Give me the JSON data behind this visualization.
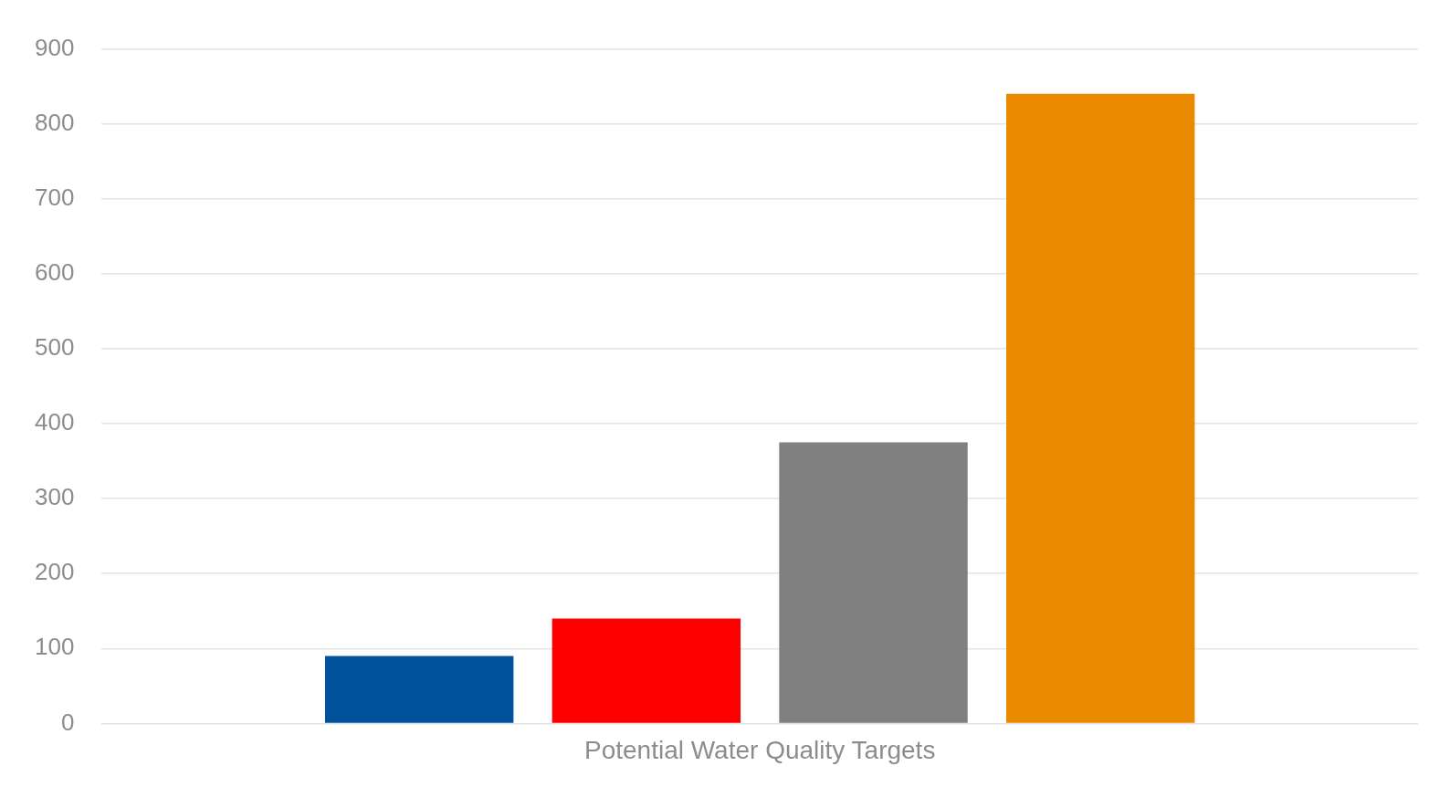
{
  "chart_data": {
    "type": "bar",
    "categories": [
      "Potential Water Quality Targets"
    ],
    "series": [
      {
        "color": "#00529b",
        "values": [
          90
        ]
      },
      {
        "color": "#ff0000",
        "values": [
          140
        ]
      },
      {
        "color": "#808080",
        "values": [
          375
        ]
      },
      {
        "color": "#e98a00",
        "values": [
          840
        ]
      }
    ],
    "ylim": [
      0,
      900
    ],
    "yticks": [
      0,
      100,
      200,
      300,
      400,
      500,
      600,
      700,
      800,
      900
    ],
    "grid": "y",
    "legend": false
  }
}
